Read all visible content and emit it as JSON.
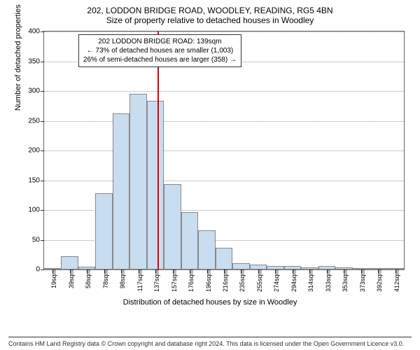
{
  "titles": {
    "main": "202, LODDON BRIDGE ROAD, WOODLEY, READING, RG5 4BN",
    "sub": "Size of property relative to detached houses in Woodley"
  },
  "chart": {
    "type": "histogram",
    "ylabel": "Number of detached properties",
    "xlabel": "Distribution of detached houses by size in Woodley",
    "ylim": [
      0,
      400
    ],
    "yticks": [
      0,
      50,
      100,
      150,
      200,
      250,
      300,
      350,
      400
    ],
    "xticks": [
      "19sqm",
      "39sqm",
      "58sqm",
      "78sqm",
      "98sqm",
      "117sqm",
      "137sqm",
      "157sqm",
      "176sqm",
      "196sqm",
      "216sqm",
      "235sqm",
      "255sqm",
      "274sqm",
      "294sqm",
      "314sqm",
      "333sqm",
      "353sqm",
      "373sqm",
      "392sqm",
      "412sqm"
    ],
    "values": [
      1,
      22,
      5,
      128,
      262,
      295,
      283,
      143,
      96,
      66,
      36,
      11,
      8,
      6,
      6,
      4,
      6,
      3,
      0,
      2,
      2
    ],
    "bar_fill": "#c8ddf0",
    "bar_border": "#888888",
    "grid_color": "#999999",
    "background": "#ffffff",
    "axis_color": "#666666",
    "reference_line": {
      "position_index": 6.1,
      "color": "#dd0000"
    },
    "annotation": {
      "line1": "202 LODDON BRIDGE ROAD: 139sqm",
      "line2": "← 73% of detached houses are smaller (1,003)",
      "line3": "26% of semi-detached houses are larger (358) →",
      "left_index": 1.5,
      "top_value": 395
    }
  },
  "footer": {
    "text": "Contains HM Land Registry data © Crown copyright and database right 2024. This data is licensed under the Open Government Licence v3.0."
  }
}
